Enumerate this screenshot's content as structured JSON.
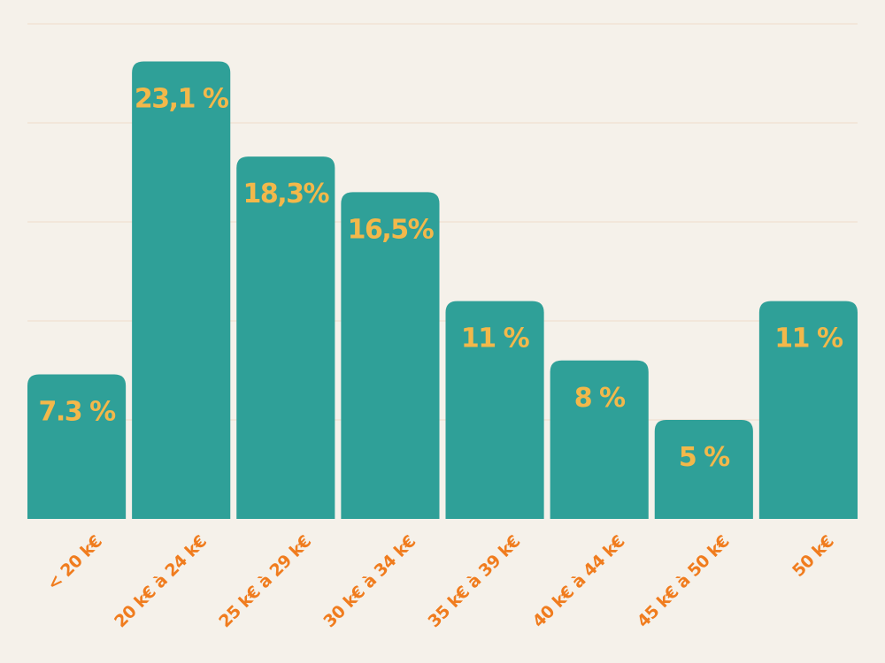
{
  "chart_data": {
    "type": "bar",
    "categories": [
      "< 20 k€",
      "20 k€ à 24 k€",
      "25 k€ à 29 k€",
      "30 k€ à 34 k€",
      "35 k€ à 39 k€",
      "40 k€ à 44 k€",
      "45 k€ à 50 k€",
      "50 k€"
    ],
    "values": [
      7.3,
      23.1,
      18.3,
      16.5,
      11,
      8,
      5,
      11
    ],
    "data_labels": [
      "7.3 %",
      "23,1 %",
      "18,3%",
      "16,5%",
      "11 %",
      "8 %",
      "5 %",
      "11 %"
    ],
    "title": "",
    "xlabel": "",
    "ylabel": "",
    "ylim": [
      0,
      25
    ],
    "grid": true,
    "legend": "none",
    "colors": {
      "bar": "#2fa098",
      "data_label": "#f3b84a",
      "tick_label": "#f07c1e",
      "grid": "#f0dccb",
      "background": "#f5f1ea"
    }
  }
}
